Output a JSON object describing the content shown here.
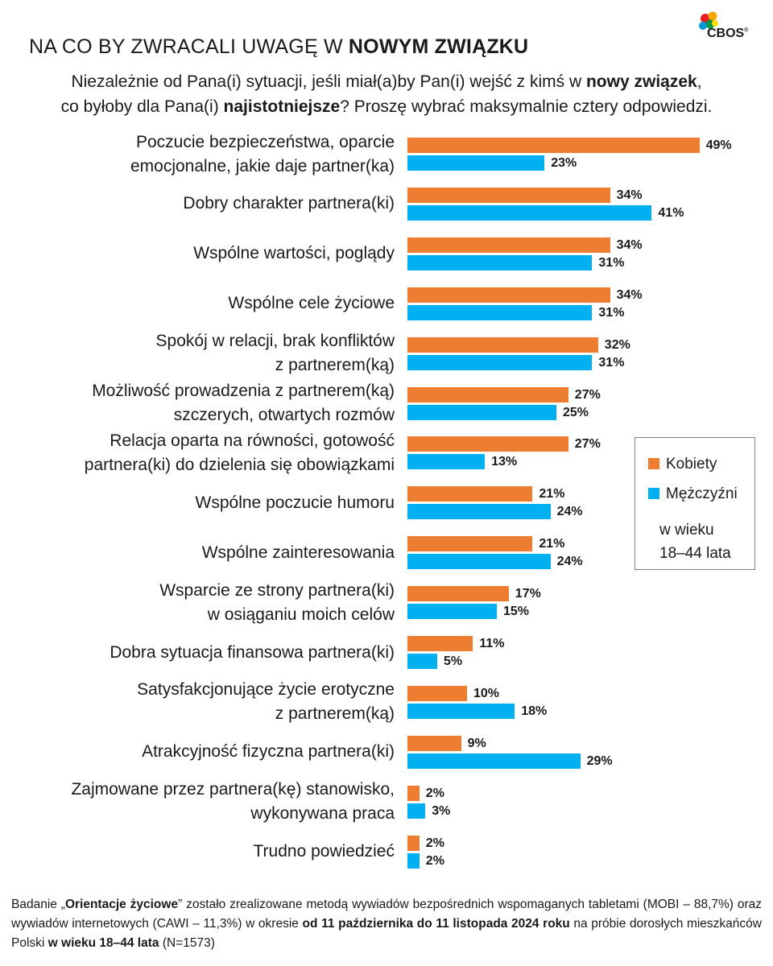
{
  "header": {
    "title_normal": "NA CO BY ZWRACALI UWAGĘ W ",
    "title_bold": "NOWYM ZWIĄZKU",
    "logo_text": "CBOS",
    "logo_mark": "®"
  },
  "question": {
    "l1_a": "Niezależnie od Pana(i) sytuacji, jeśli miał(a)by Pan(i) wejść z kimś w ",
    "l1_b": "nowy związek",
    "l1_c": ",",
    "l2_a": "co byłoby dla Pana(i) ",
    "l2_b": "najistotniejsze",
    "l2_c": "? Proszę wybrać maksymalnie cztery odpowiedzi."
  },
  "colors": {
    "women": "#ED7D31",
    "men": "#00B0F0"
  },
  "legend": {
    "women": "Kobiety",
    "men": "Mężczyźni",
    "note_l1": "w wieku",
    "note_l2": "18–44 lata"
  },
  "chart_data": {
    "type": "bar",
    "orientation": "horizontal",
    "unit": "%",
    "xlim": [
      0,
      50
    ],
    "categories": [
      [
        "Poczucie bezpieczeństwa, oparcie",
        "emocjonalne, jakie daje partner(ka)"
      ],
      [
        "Dobry charakter partnera(ki)"
      ],
      [
        "Wspólne wartości, poglądy"
      ],
      [
        "Wspólne cele życiowe"
      ],
      [
        "Spokój w relacji, brak konfliktów",
        "z partnerem(ką)"
      ],
      [
        "Możliwość prowadzenia z partnerem(ką)",
        "szczerych, otwartych rozmów"
      ],
      [
        "Relacja oparta na równości, gotowość",
        "partnera(ki) do dzielenia się obowiązkami"
      ],
      [
        "Wspólne poczucie humoru"
      ],
      [
        "Wspólne zainteresowania"
      ],
      [
        "Wsparcie ze strony partnera(ki)",
        "w osiąganiu moich celów"
      ],
      [
        "Dobra sytuacja finansowa partnera(ki)"
      ],
      [
        "Satysfakcjonujące życie erotyczne",
        "z partnerem(ką)"
      ],
      [
        "Atrakcyjność fizyczna partnera(ki)"
      ],
      [
        "Zajmowane przez partnera(kę) stanowisko,",
        "wykonywana praca"
      ],
      [
        "Trudno powiedzieć"
      ]
    ],
    "series": [
      {
        "name": "Kobiety",
        "values": [
          49,
          34,
          34,
          34,
          32,
          27,
          27,
          21,
          21,
          17,
          11,
          10,
          9,
          2,
          2
        ]
      },
      {
        "name": "Mężczyźni",
        "values": [
          23,
          41,
          31,
          31,
          31,
          25,
          13,
          24,
          24,
          15,
          5,
          18,
          29,
          3,
          2
        ]
      }
    ]
  },
  "footer": {
    "p1": "Badanie „",
    "p2": "Orientacje życiowe",
    "p3": "” zostało zrealizowane metodą wywiadów bezpośrednich wspomaganych tabletami (MOBI – 88,7%) oraz wywiadów internetowych (CAWI – 11,3%) w okresie ",
    "p4": "od 11 października do 11 listopada 2024 roku",
    "p5": " na próbie dorosłych mieszkańców Polski ",
    "p6": "w wieku 18–44 lata",
    "p7": " (N=1573)"
  }
}
